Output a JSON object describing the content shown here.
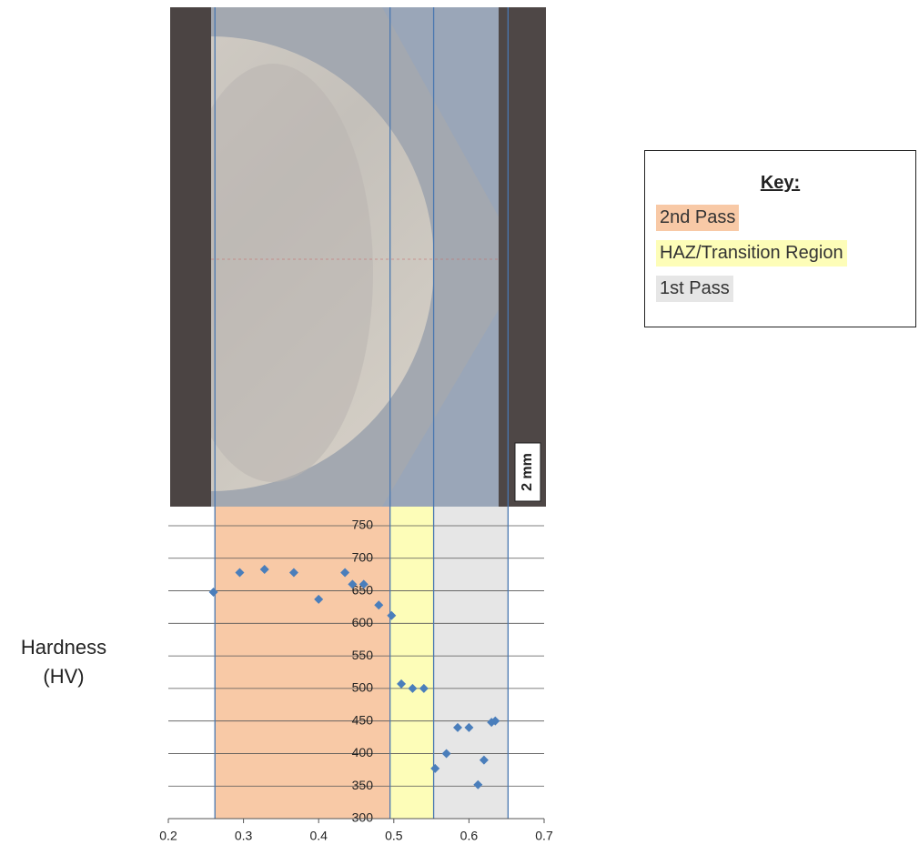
{
  "chart_data": {
    "type": "scatter",
    "y_label": "Hardness (HV)",
    "image_scale_label": "2 mm",
    "x": [
      0.26,
      0.295,
      0.328,
      0.367,
      0.4,
      0.435,
      0.445,
      0.46,
      0.48,
      0.497,
      0.51,
      0.525,
      0.54,
      0.555,
      0.57,
      0.585,
      0.6,
      0.612,
      0.62,
      0.63,
      0.635
    ],
    "values": [
      648,
      678,
      683,
      678,
      637,
      678,
      660,
      660,
      628,
      612,
      507,
      500,
      500,
      377,
      400,
      440,
      440,
      352,
      390,
      448,
      450
    ],
    "color": "#4a7ebb",
    "xlim": [
      0.2,
      0.7
    ],
    "xticks": [
      0.2,
      0.3,
      0.4,
      0.5,
      0.6,
      0.7
    ],
    "ylim": [
      300,
      750
    ],
    "yticks": [
      300,
      350,
      400,
      450,
      500,
      550,
      600,
      650,
      700,
      750
    ],
    "grid": true,
    "legend_title": "Key:",
    "regions": [
      {
        "name": "2nd Pass",
        "color": "#f8c9a6",
        "x": [
          0.262,
          0.495
        ]
      },
      {
        "name": "HAZ/Transition Region",
        "color": "#fdfdb8",
        "x": [
          0.495,
          0.553
        ]
      },
      {
        "name": "1st Pass",
        "color": "#e6e6e6",
        "x": [
          0.553,
          0.652
        ]
      }
    ]
  }
}
